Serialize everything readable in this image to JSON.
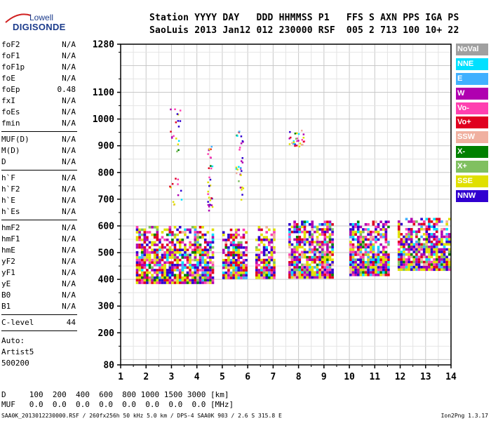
{
  "logo": {
    "line1": "Lowell",
    "line2": "DIGISONDE"
  },
  "header": {
    "line1": "Station YYYY DAY   DDD HHMMSS P1   FFS S AXN PPS IGA PS",
    "line2": "SaoLuis 2013 Jan12 012 230000 RSF  005 2 713 100 10+ 22"
  },
  "params": [
    {
      "group": [
        {
          "name": "foF2",
          "value": "N/A"
        },
        {
          "name": "foF1",
          "value": "N/A"
        },
        {
          "name": "foF1p",
          "value": "N/A"
        },
        {
          "name": "foE",
          "value": "N/A"
        },
        {
          "name": "foEp",
          "value": "0.48"
        },
        {
          "name": "fxI",
          "value": "N/A"
        },
        {
          "name": "foEs",
          "value": "N/A"
        },
        {
          "name": "fmin",
          "value": "N/A"
        }
      ]
    },
    {
      "group": [
        {
          "name": "MUF(D)",
          "value": "N/A"
        },
        {
          "name": "M(D)",
          "value": "N/A"
        },
        {
          "name": "D",
          "value": "N/A"
        }
      ]
    },
    {
      "group": [
        {
          "name": "h`F",
          "value": "N/A"
        },
        {
          "name": "h`F2",
          "value": "N/A"
        },
        {
          "name": "h`E",
          "value": "N/A"
        },
        {
          "name": "h`Es",
          "value": "N/A"
        }
      ]
    },
    {
      "group": [
        {
          "name": "hmF2",
          "value": "N/A"
        },
        {
          "name": "hmF1",
          "value": "N/A"
        },
        {
          "name": "hmE",
          "value": "N/A"
        },
        {
          "name": "yF2",
          "value": "N/A"
        },
        {
          "name": "yF1",
          "value": "N/A"
        },
        {
          "name": "yE",
          "value": "N/A"
        },
        {
          "name": "B0",
          "value": "N/A"
        },
        {
          "name": "B1",
          "value": "N/A"
        }
      ]
    },
    {
      "group": [
        {
          "name": "C-level",
          "value": "44"
        }
      ]
    }
  ],
  "auto": {
    "line1": "Auto:",
    "line2": "Artist5",
    "line3": "500200"
  },
  "legend": [
    {
      "label": "NoVal",
      "color": "#a0a0a0",
      "text": "#ffffff"
    },
    {
      "label": "NNE",
      "color": "#00e0ff",
      "text": "#ffffff"
    },
    {
      "label": "E",
      "color": "#40b0ff",
      "text": "#ffffff"
    },
    {
      "label": "W",
      "color": "#b000b0",
      "text": "#ffffff"
    },
    {
      "label": "Vo-",
      "color": "#ff40b0",
      "text": "#ffffff"
    },
    {
      "label": "Vo+",
      "color": "#e00020",
      "text": "#ffffff"
    },
    {
      "label": "SSW",
      "color": "#f0b0a0",
      "text": "#ffffff"
    },
    {
      "label": "X-",
      "color": "#008000",
      "text": "#ffffff"
    },
    {
      "label": "X+",
      "color": "#80c060",
      "text": "#ffffff"
    },
    {
      "label": "SSE",
      "color": "#e0e000",
      "text": "#ffffff"
    },
    {
      "label": "NNW",
      "color": "#3000d0",
      "text": "#ffffff"
    }
  ],
  "bottom": {
    "d_line": "D     100  200  400  600  800 1000 1500 3000 [km]",
    "muf_line": "MUF   0.0  0.0  0.0  0.0  0.0  0.0  0.0  0.0 [MHz]"
  },
  "footer": {
    "left": "SAA0K_2013012230000.RSF / 260fx256h 50 kHz 5.0 km / DPS-4 SAA0K 903 / 2.6 S 315.8 E",
    "right": "Ion2Png 1.3.17"
  },
  "chart_data": {
    "type": "scatter",
    "xlim": [
      1,
      14
    ],
    "ylim": [
      80,
      1280
    ],
    "x_ticks": [
      "1",
      "2",
      "3",
      "4",
      "5",
      "6",
      "7",
      "8",
      "9",
      "10",
      "11",
      "12",
      "13",
      "14"
    ],
    "y_ticks": [
      "80",
      "200",
      "300",
      "400",
      "500",
      "600",
      "700",
      "800",
      "900",
      "1000",
      "1100",
      "1280"
    ],
    "grid": true,
    "clusters": [
      {
        "x0": 1.6,
        "x1": 4.6,
        "y0": 390,
        "y1": 600,
        "dir": "mixed"
      },
      {
        "x0": 5.0,
        "x1": 5.9,
        "y0": 410,
        "y1": 590,
        "dir": "mixed"
      },
      {
        "x0": 6.3,
        "x1": 7.0,
        "y0": 410,
        "y1": 600,
        "dir": "mixed"
      },
      {
        "x0": 7.6,
        "x1": 9.3,
        "y0": 410,
        "y1": 620,
        "dir": "mixed"
      },
      {
        "x0": 10.0,
        "x1": 11.5,
        "y0": 420,
        "y1": 620,
        "dir": "mixed"
      },
      {
        "x0": 11.9,
        "x1": 13.95,
        "y0": 440,
        "y1": 630,
        "dir": "mixed"
      }
    ],
    "sparse": [
      {
        "x0": 2.9,
        "x1": 3.4,
        "y0": 680,
        "y1": 1050
      },
      {
        "x0": 4.4,
        "x1": 4.6,
        "y0": 650,
        "y1": 900
      },
      {
        "x0": 5.5,
        "x1": 5.8,
        "y0": 700,
        "y1": 970
      },
      {
        "x0": 7.6,
        "x1": 8.2,
        "y0": 900,
        "y1": 960
      }
    ]
  }
}
